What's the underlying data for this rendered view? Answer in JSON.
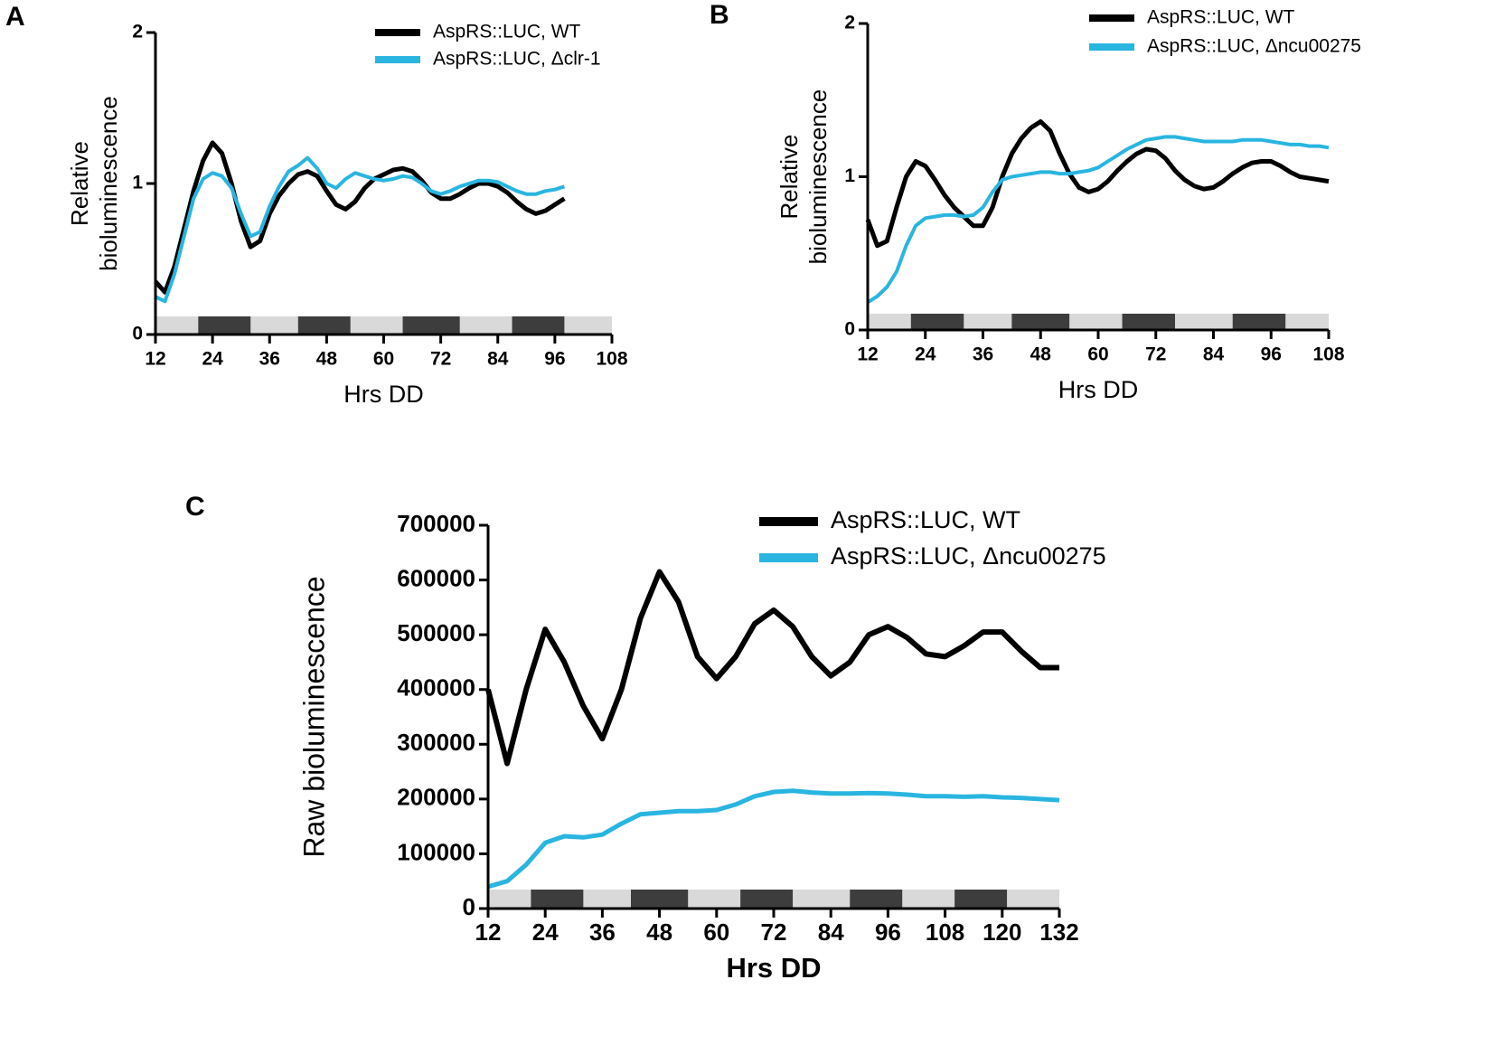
{
  "chart_data": [
    {
      "type": "line",
      "panel": "A",
      "xlabel": "Hrs DD",
      "ylabel": [
        "Relative",
        "bioluminescence"
      ],
      "xlim": [
        12,
        108
      ],
      "xticks": [
        12,
        24,
        36,
        48,
        60,
        72,
        84,
        96,
        108
      ],
      "ylim": [
        0,
        2
      ],
      "yticks": [
        0,
        1,
        2
      ],
      "grid": false,
      "dark_periods": [
        [
          21,
          32
        ],
        [
          42,
          53
        ],
        [
          64,
          76
        ],
        [
          87,
          98
        ]
      ],
      "x": [
        12,
        14,
        16,
        18,
        20,
        22,
        24,
        26,
        28,
        30,
        32,
        34,
        36,
        38,
        40,
        42,
        44,
        46,
        48,
        50,
        52,
        54,
        56,
        58,
        60,
        62,
        64,
        66,
        68,
        70,
        72,
        74,
        76,
        78,
        80,
        82,
        84,
        86,
        88,
        90,
        92,
        94,
        96,
        98
      ],
      "series": [
        {
          "name": "AspRS::LUC, WT",
          "color": "#000000",
          "values": [
            0.35,
            0.28,
            0.45,
            0.7,
            0.95,
            1.15,
            1.27,
            1.2,
            1.0,
            0.75,
            0.58,
            0.62,
            0.8,
            0.92,
            1.0,
            1.06,
            1.08,
            1.05,
            0.95,
            0.86,
            0.83,
            0.88,
            0.97,
            1.03,
            1.06,
            1.09,
            1.1,
            1.08,
            1.02,
            0.94,
            0.9,
            0.9,
            0.93,
            0.97,
            1.0,
            1.0,
            0.98,
            0.94,
            0.88,
            0.83,
            0.8,
            0.82,
            0.86,
            0.9
          ]
        },
        {
          "name": "AspRS::LUC, Δclr-1",
          "color": "#29b5e0",
          "values": [
            0.25,
            0.22,
            0.4,
            0.65,
            0.9,
            1.03,
            1.07,
            1.05,
            0.97,
            0.8,
            0.65,
            0.68,
            0.85,
            0.98,
            1.08,
            1.12,
            1.17,
            1.1,
            1.0,
            0.97,
            1.03,
            1.07,
            1.05,
            1.03,
            1.02,
            1.03,
            1.05,
            1.04,
            1.0,
            0.95,
            0.93,
            0.95,
            0.98,
            1.0,
            1.02,
            1.02,
            1.01,
            0.98,
            0.95,
            0.93,
            0.93,
            0.95,
            0.96,
            0.98
          ]
        }
      ]
    },
    {
      "type": "line",
      "panel": "B",
      "xlabel": "Hrs DD",
      "ylabel": [
        "Relative",
        "bioluminescence"
      ],
      "xlim": [
        12,
        108
      ],
      "xticks": [
        12,
        24,
        36,
        48,
        60,
        72,
        84,
        96,
        108
      ],
      "ylim": [
        0,
        2
      ],
      "yticks": [
        0,
        1,
        2
      ],
      "grid": false,
      "dark_periods": [
        [
          21,
          32
        ],
        [
          42,
          54
        ],
        [
          65,
          76
        ],
        [
          88,
          99
        ]
      ],
      "x": [
        12,
        14,
        16,
        18,
        20,
        22,
        24,
        26,
        28,
        30,
        32,
        34,
        36,
        38,
        40,
        42,
        44,
        46,
        48,
        50,
        52,
        54,
        56,
        58,
        60,
        62,
        64,
        66,
        68,
        70,
        72,
        74,
        76,
        78,
        80,
        82,
        84,
        86,
        88,
        90,
        92,
        94,
        96,
        98,
        100,
        102,
        104,
        106,
        108
      ],
      "series": [
        {
          "name": "AspRS::LUC, WT",
          "color": "#000000",
          "values": [
            0.72,
            0.55,
            0.58,
            0.8,
            1.0,
            1.1,
            1.07,
            0.98,
            0.88,
            0.8,
            0.74,
            0.68,
            0.68,
            0.8,
            1.0,
            1.15,
            1.25,
            1.32,
            1.36,
            1.3,
            1.15,
            1.02,
            0.93,
            0.9,
            0.92,
            0.97,
            1.04,
            1.1,
            1.15,
            1.18,
            1.17,
            1.12,
            1.04,
            0.98,
            0.94,
            0.92,
            0.93,
            0.97,
            1.02,
            1.06,
            1.09,
            1.1,
            1.1,
            1.07,
            1.03,
            1.0,
            0.99,
            0.98,
            0.97
          ]
        },
        {
          "name": "AspRS::LUC, Δncu00275",
          "color": "#29b5e0",
          "values": [
            0.18,
            0.22,
            0.28,
            0.38,
            0.55,
            0.68,
            0.73,
            0.74,
            0.75,
            0.75,
            0.74,
            0.75,
            0.8,
            0.9,
            0.98,
            1.0,
            1.01,
            1.02,
            1.03,
            1.03,
            1.02,
            1.02,
            1.03,
            1.04,
            1.06,
            1.1,
            1.14,
            1.18,
            1.21,
            1.24,
            1.25,
            1.26,
            1.26,
            1.25,
            1.24,
            1.23,
            1.23,
            1.23,
            1.23,
            1.24,
            1.24,
            1.24,
            1.23,
            1.22,
            1.21,
            1.21,
            1.2,
            1.2,
            1.19
          ]
        }
      ]
    },
    {
      "type": "line",
      "panel": "C",
      "xlabel": "Hrs DD",
      "ylabel": [
        "Raw bioluminescence"
      ],
      "xlim": [
        12,
        132
      ],
      "xticks": [
        12,
        24,
        36,
        48,
        60,
        72,
        84,
        96,
        108,
        120,
        132
      ],
      "ylim": [
        0,
        700000
      ],
      "yticks": [
        0,
        100000,
        200000,
        300000,
        400000,
        500000,
        600000,
        700000
      ],
      "grid": false,
      "dark_periods": [
        [
          21,
          32
        ],
        [
          42,
          54
        ],
        [
          65,
          76
        ],
        [
          88,
          99
        ],
        [
          110,
          121
        ]
      ],
      "x": [
        12,
        16,
        20,
        24,
        28,
        32,
        36,
        40,
        44,
        48,
        52,
        56,
        60,
        64,
        68,
        72,
        76,
        80,
        84,
        88,
        92,
        96,
        100,
        104,
        108,
        112,
        116,
        120,
        124,
        128,
        132
      ],
      "series": [
        {
          "name": "AspRS::LUC, WT",
          "color": "#000000",
          "values": [
            400000,
            265000,
            400000,
            510000,
            450000,
            370000,
            310000,
            400000,
            530000,
            615000,
            560000,
            460000,
            420000,
            460000,
            520000,
            545000,
            515000,
            460000,
            425000,
            450000,
            500000,
            515000,
            495000,
            465000,
            460000,
            480000,
            505000,
            505000,
            470000,
            440000,
            440000
          ]
        },
        {
          "name": "AspRS::LUC, Δncu00275",
          "color": "#29b5e0",
          "values": [
            40000,
            50000,
            80000,
            120000,
            132000,
            130000,
            135000,
            155000,
            172000,
            175000,
            178000,
            178000,
            180000,
            190000,
            205000,
            213000,
            215000,
            212000,
            210000,
            210000,
            211000,
            210000,
            208000,
            205000,
            205000,
            204000,
            205000,
            203000,
            202000,
            200000,
            198000
          ]
        }
      ]
    }
  ]
}
